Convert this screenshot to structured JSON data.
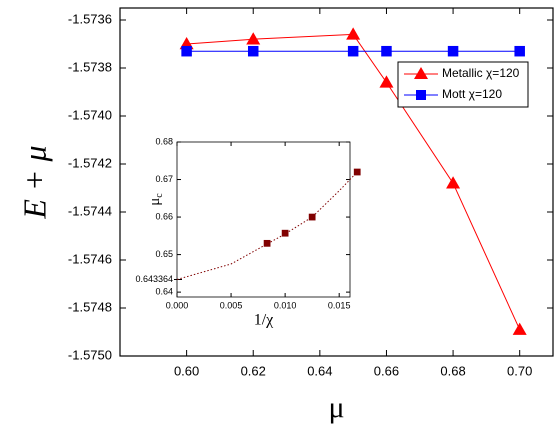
{
  "chart_data": [
    {
      "type": "scatter",
      "xlabel": "μ",
      "ylabel": "E + μ",
      "x": [
        0.6,
        0.62,
        0.65,
        0.66,
        0.68,
        0.7
      ],
      "xlim": [
        0.58,
        0.71
      ],
      "xticks": [
        {
          "value": 0.6,
          "label": "0.60"
        },
        0.62,
        0.64,
        0.66,
        0.68,
        {
          "value": 0.7,
          "label": "0.70"
        }
      ],
      "ylim": [
        -1.575,
        -1.57355
      ],
      "yticks": [
        {
          "value": -1.575,
          "label": "-1.5750"
        },
        -1.5748,
        -1.5746,
        -1.5744,
        -1.5742,
        {
          "value": -1.574,
          "label": "-1.5740"
        },
        -1.5738,
        -1.5736
      ],
      "legend": "upper right",
      "series": [
        {
          "name": "Metallic χ=120",
          "color": "#ff0000",
          "marker": "triangle",
          "linestyle": "solid",
          "values": [
            -1.5737,
            -1.57368,
            -1.57366,
            -1.57386,
            -1.57428,
            -1.57489
          ]
        },
        {
          "name": "Mott χ=120",
          "color": "#0000ff",
          "marker": "square",
          "linestyle": "solid",
          "values": [
            -1.57373,
            -1.57373,
            -1.57373,
            -1.57373,
            -1.57373,
            -1.57373
          ]
        }
      ]
    },
    {
      "type": "scatter",
      "xlabel": "1/χ",
      "ylabel": "μ",
      "ylabel_subscript": "c",
      "x": [
        0.008333,
        0.01,
        0.0125,
        0.016667
      ],
      "xlim": [
        0,
        0.016
      ],
      "xticks": [
        {
          "value": 0,
          "label": "0.000"
        },
        0.005,
        {
          "value": 0.01,
          "label": "0.010"
        },
        0.015
      ],
      "ylim": [
        0.6387,
        0.68
      ],
      "yticks": [
        0.64,
        0.65,
        0.66,
        0.67,
        0.68
      ],
      "annotation": {
        "value": 0.643364,
        "label": "0.643364"
      },
      "series": [
        {
          "color": "#800000",
          "marker": "square",
          "linestyle": "none",
          "values": [
            0.653,
            0.6557,
            0.66,
            0.672
          ]
        },
        {
          "color": "#800000",
          "marker": null,
          "linestyle": "dotted",
          "x": [
            0,
            0.005,
            0.01,
            0.0125,
            0.015,
            0.016667
          ],
          "values": [
            0.643364,
            0.6475,
            0.6555,
            0.66,
            0.667,
            0.672
          ]
        }
      ]
    }
  ]
}
